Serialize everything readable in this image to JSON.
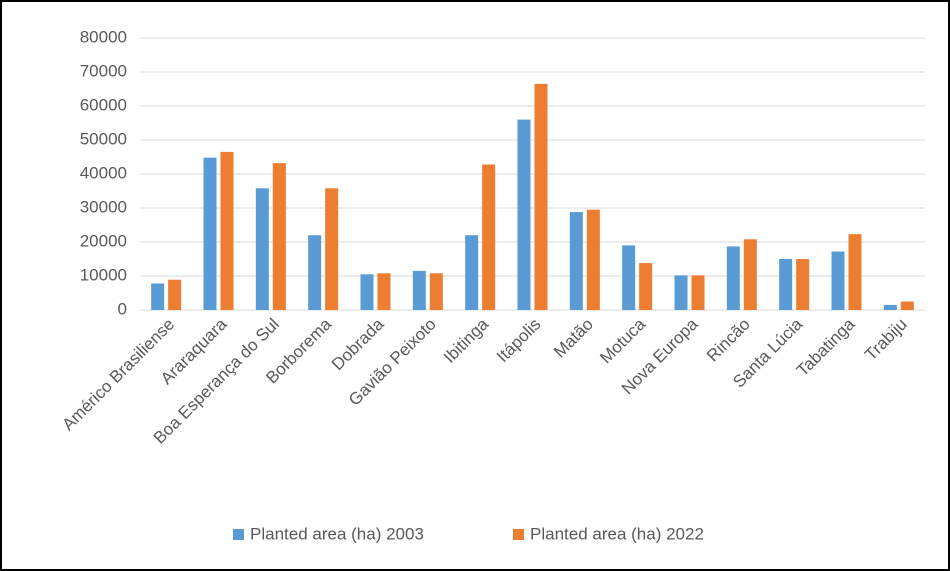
{
  "chart_data": {
    "type": "bar",
    "categories": [
      "Américo Brasiliense",
      "Araraquara",
      "Boa Esperança do Sul",
      "Borborema",
      "Dobrada",
      "Gavião Peixoto",
      "Ibitinga",
      "Itápolis",
      "Matão",
      "Motuca",
      "Nova Europa",
      "Rincão",
      "Santa Lúcia",
      "Tabatinga",
      "Trabiju"
    ],
    "series": [
      {
        "name": "Planted area (ha) 2003",
        "color": "#5b9bd5",
        "values": [
          7800,
          44800,
          35800,
          22000,
          10500,
          11500,
          22000,
          56000,
          28800,
          19000,
          10200,
          18700,
          15000,
          17200,
          1500
        ]
      },
      {
        "name": "Planted area (ha) 2022",
        "color": "#ed7d31",
        "values": [
          8900,
          46500,
          43200,
          35800,
          10800,
          10800,
          42800,
          66500,
          29500,
          13800,
          10200,
          20800,
          15000,
          22300,
          2500
        ]
      }
    ],
    "ylim": [
      0,
      80000
    ],
    "yticks": [
      0,
      10000,
      20000,
      30000,
      40000,
      50000,
      60000,
      70000,
      80000
    ],
    "grid": true,
    "legend": "bottom"
  }
}
